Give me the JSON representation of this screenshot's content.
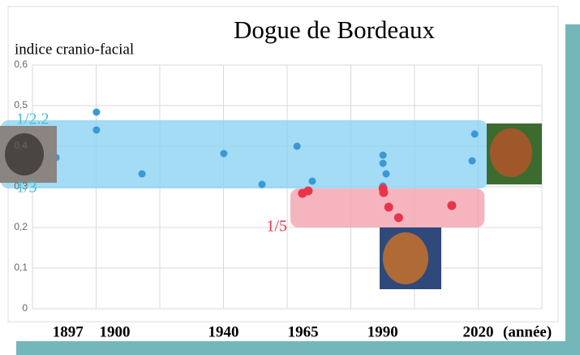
{
  "chart_data": {
    "type": "scatter",
    "title": "Dogue de Bordeaux",
    "y_label": "indice cranio-facial",
    "x_label": "(année)",
    "xlim": [
      1880,
      2040
    ],
    "ylim": [
      0,
      0.6
    ],
    "xticks": [
      1897,
      1900,
      1940,
      1965,
      1990,
      2020
    ],
    "x_gridlines": [
      1880,
      1900,
      1920,
      1940,
      1960,
      1980,
      2000,
      2020,
      2040
    ],
    "yticks": [
      {
        "value": 0,
        "label": "0"
      },
      {
        "value": 0.1,
        "label": "0,1"
      },
      {
        "value": 0.2,
        "label": "0,2"
      },
      {
        "value": 0.3,
        "label": "0,3"
      },
      {
        "value": 0.4,
        "label": "0,4"
      },
      {
        "value": 0.5,
        "label": "0,5"
      },
      {
        "value": 0.6,
        "label": "0,6"
      }
    ],
    "grid": true,
    "bands": [
      {
        "color": "#8dd2f3",
        "xmin": 1870,
        "xmax": 2023,
        "ymin": 0.296,
        "ymax": 0.464,
        "labels": [
          "1/2.2",
          "1/3"
        ],
        "label_color": "#4bbfd0"
      },
      {
        "color": "#f4a3ae",
        "xmin": 1961,
        "xmax": 2022,
        "ymin": 0.2,
        "ymax": 0.296,
        "labels": [
          "1/5"
        ],
        "label_color": "#e8354a"
      }
    ],
    "series": [
      {
        "color": "#3a98d8",
        "x": [
          1887.4,
          1900.1,
          1900.1,
          1914.4,
          1940.1,
          1952.1,
          1963.1,
          1967.9,
          1990.1,
          1990.1,
          1991.1,
          1990.1,
          2018.9,
          2018.1
        ],
        "values": [
          0.372,
          0.484,
          0.44,
          0.332,
          0.382,
          0.306,
          0.4,
          0.314,
          0.378,
          0.358,
          0.332,
          0.302,
          0.43,
          0.364
        ]
      },
      {
        "color": "#e8354a",
        "x": [
          1964.8,
          1966.6,
          1990.1,
          1990.3,
          1991.9,
          1995,
          2011.7
        ],
        "values": [
          0.284,
          0.29,
          0.296,
          0.286,
          0.25,
          0.224,
          0.254
        ]
      }
    ]
  }
}
